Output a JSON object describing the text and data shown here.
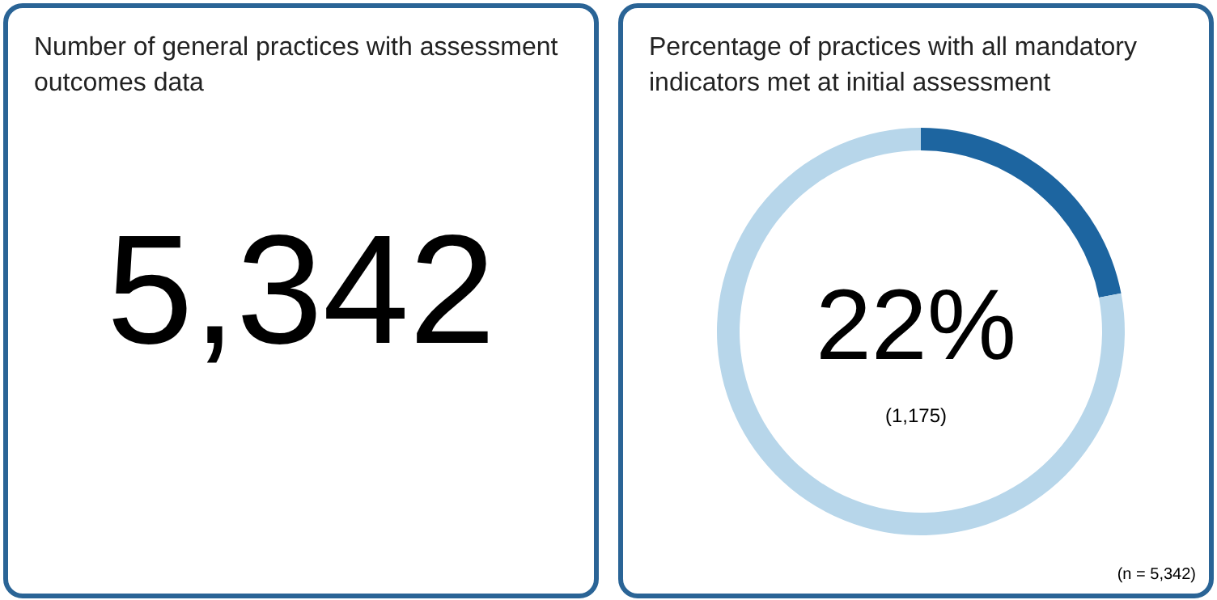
{
  "chart_data": [
    {
      "type": "other",
      "title": "Number of general practices with assessment outcomes data",
      "annotations": [
        "5,342"
      ]
    },
    {
      "type": "donut",
      "title": "Percentage of practices with all mandatory indicators met at initial assessment",
      "categories": [
        null,
        null
      ],
      "values": [
        22,
        78
      ],
      "colors": [
        "#1d65a0",
        "#b7d6ea"
      ],
      "annotations": [
        "22%",
        "(1,175)",
        "(n = 5,342)"
      ]
    }
  ]
}
